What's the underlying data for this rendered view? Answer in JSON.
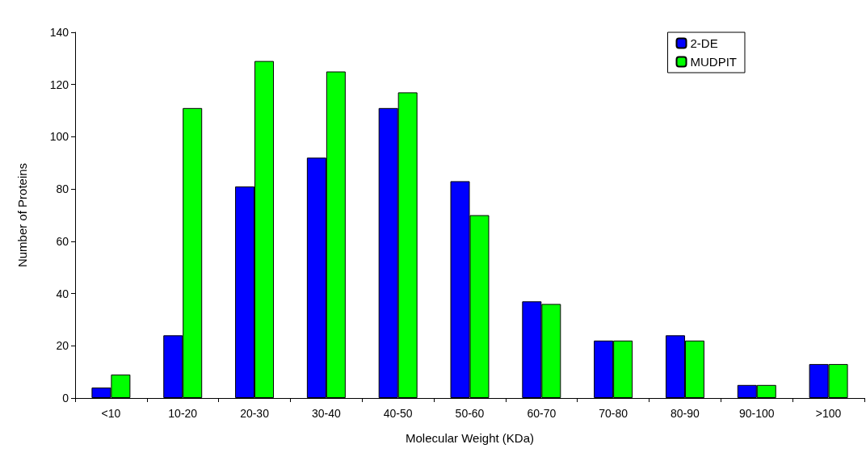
{
  "chart_data": {
    "type": "bar",
    "xlabel": "Molecular Weight (KDa)",
    "ylabel": "Number of Proteins",
    "categories": [
      "<10",
      "10-20",
      "20-30",
      "30-40",
      "40-50",
      "50-60",
      "60-70",
      "70-80",
      "80-90",
      "90-100",
      ">100"
    ],
    "series": [
      {
        "name": "2-DE",
        "color": "#0000ff",
        "values": [
          4,
          24,
          81,
          92,
          111,
          83,
          37,
          22,
          24,
          5,
          13
        ]
      },
      {
        "name": "MUDPIT",
        "color": "#00ff00",
        "values": [
          9,
          111,
          129,
          125,
          117,
          70,
          36,
          22,
          22,
          5,
          13
        ]
      }
    ],
    "ylim": [
      0,
      140
    ],
    "yticks": [
      0,
      20,
      40,
      60,
      80,
      100,
      120,
      140
    ],
    "grid": false,
    "legend": "top right"
  }
}
